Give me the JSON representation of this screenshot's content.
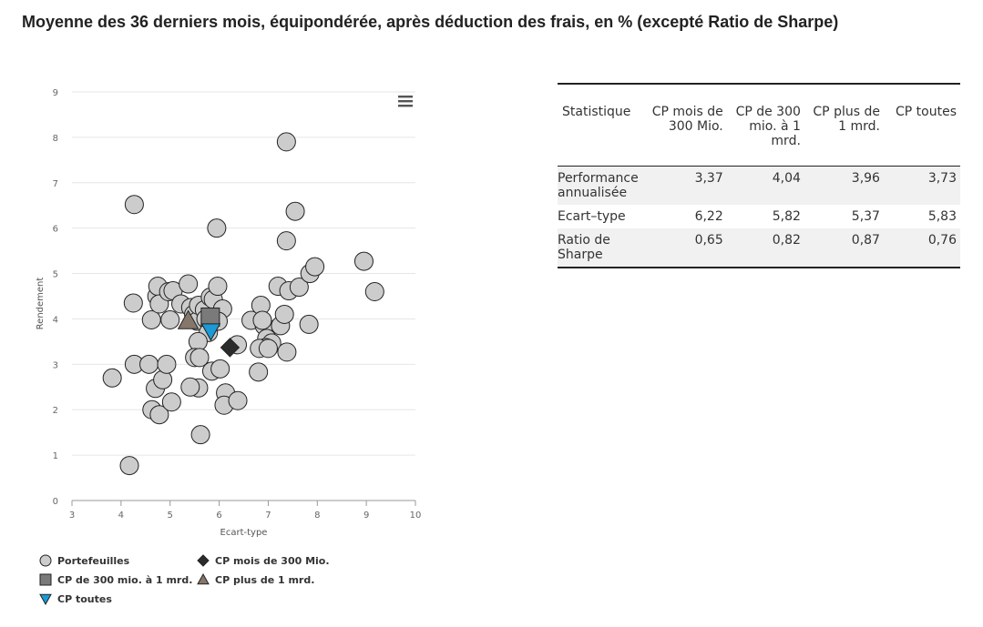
{
  "title": "Moyenne des 36 derniers mois, équipondérée, après déduction des frais, en % (excepté Ratio de Sharpe)",
  "menu_icon": "hamburger-menu-icon",
  "colors": {
    "portfolio_fill": "#cccccc",
    "marker_stroke": "#222222",
    "diamond": "#2b2b2b",
    "square": "#7a7a7a",
    "triangle_up": "#85776a",
    "triangle_down": "#1a9ad6",
    "grid": "#e6e6e6"
  },
  "chart_data": {
    "type": "scatter",
    "xlabel": "Ecart-type",
    "ylabel": "Rendement",
    "xlim": [
      3,
      10
    ],
    "ylim": [
      0,
      9
    ],
    "xticks": [
      3,
      4,
      5,
      6,
      7,
      8,
      9,
      10
    ],
    "yticks": [
      0,
      1,
      2,
      3,
      4,
      5,
      6,
      7,
      8,
      9
    ],
    "grid": "horizontal",
    "legend_position": "bottom-left",
    "series": [
      {
        "name": "Portefeuilles",
        "marker": "circle",
        "points": [
          [
            3.82,
            2.7
          ],
          [
            4.17,
            0.77
          ],
          [
            4.27,
            6.52
          ],
          [
            4.25,
            4.35
          ],
          [
            4.27,
            3.0
          ],
          [
            4.57,
            3.0
          ],
          [
            4.63,
            2.0
          ],
          [
            4.7,
            2.47
          ],
          [
            4.78,
            1.89
          ],
          [
            4.85,
            2.66
          ],
          [
            4.93,
            3.0
          ],
          [
            5.03,
            2.17
          ],
          [
            4.62,
            3.98
          ],
          [
            4.73,
            4.5
          ],
          [
            4.75,
            4.72
          ],
          [
            4.78,
            4.33
          ],
          [
            4.97,
            4.6
          ],
          [
            5.0,
            3.98
          ],
          [
            5.06,
            4.62
          ],
          [
            5.22,
            4.33
          ],
          [
            5.37,
            4.77
          ],
          [
            5.42,
            4.25
          ],
          [
            5.48,
            4.1
          ],
          [
            5.55,
            3.95
          ],
          [
            5.58,
            4.3
          ],
          [
            5.7,
            4.2
          ],
          [
            5.73,
            4.0
          ],
          [
            5.78,
            3.7
          ],
          [
            5.82,
            4.48
          ],
          [
            5.88,
            4.43
          ],
          [
            5.97,
            4.72
          ],
          [
            6.07,
            4.22
          ],
          [
            5.98,
            3.95
          ],
          [
            5.57,
            3.5
          ],
          [
            5.5,
            3.15
          ],
          [
            5.6,
            3.15
          ],
          [
            5.85,
            2.85
          ],
          [
            6.02,
            2.9
          ],
          [
            5.58,
            2.48
          ],
          [
            5.41,
            2.5
          ],
          [
            5.62,
            1.45
          ],
          [
            6.13,
            2.37
          ],
          [
            6.1,
            2.1
          ],
          [
            6.38,
            2.2
          ],
          [
            6.37,
            3.43
          ],
          [
            5.95,
            6.0
          ],
          [
            6.65,
            3.97
          ],
          [
            6.85,
            4.3
          ],
          [
            6.92,
            3.85
          ],
          [
            6.88,
            3.97
          ],
          [
            6.97,
            3.57
          ],
          [
            7.07,
            3.47
          ],
          [
            6.95,
            3.37
          ],
          [
            6.82,
            3.35
          ],
          [
            7.0,
            3.35
          ],
          [
            6.8,
            2.83
          ],
          [
            7.2,
            4.72
          ],
          [
            7.25,
            3.85
          ],
          [
            7.33,
            4.1
          ],
          [
            7.37,
            5.72
          ],
          [
            7.42,
            4.62
          ],
          [
            7.38,
            3.27
          ],
          [
            7.37,
            7.9
          ],
          [
            7.55,
            6.37
          ],
          [
            7.63,
            4.7
          ],
          [
            7.83,
            3.88
          ],
          [
            7.85,
            5.0
          ],
          [
            7.95,
            5.15
          ],
          [
            8.95,
            5.27
          ],
          [
            9.17,
            4.6
          ]
        ]
      },
      {
        "name": "CP mois de 300 Mio.",
        "marker": "diamond",
        "points": [
          [
            6.22,
            3.37
          ]
        ]
      },
      {
        "name": "CP de 300 mio. à 1 mrd.",
        "marker": "square",
        "points": [
          [
            5.82,
            4.04
          ]
        ]
      },
      {
        "name": "CP plus de 1 mrd.",
        "marker": "triangle-up",
        "points": [
          [
            5.37,
            3.96
          ]
        ]
      },
      {
        "name": "CP toutes",
        "marker": "triangle-down",
        "points": [
          [
            5.83,
            3.73
          ]
        ]
      }
    ]
  },
  "table": {
    "headers": [
      "Statistique",
      "CP mois de 300 Mio.",
      "CP de 300 mio. à 1 mrd.",
      "CP plus de 1 mrd.",
      "CP toutes"
    ],
    "rows": [
      {
        "label": "Performance annualisée",
        "values": [
          "3,37",
          "4,04",
          "3,96",
          "3,73"
        ]
      },
      {
        "label": "Ecart–type",
        "values": [
          "6,22",
          "5,82",
          "5,37",
          "5,83"
        ]
      },
      {
        "label": "Ratio de Sharpe",
        "values": [
          "0,65",
          "0,82",
          "0,87",
          "0,76"
        ]
      }
    ]
  }
}
